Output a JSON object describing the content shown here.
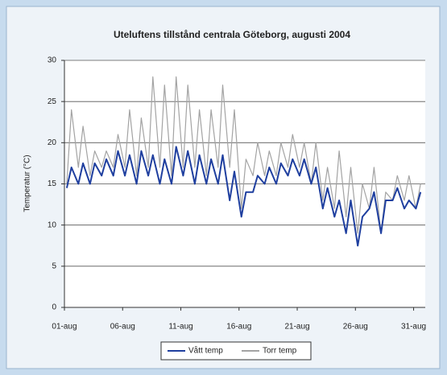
{
  "chart_data": {
    "type": "line",
    "title": "Uteluftens tillstånd centrala Göteborg, augusti 2004",
    "y_label": "Temperatur (°C)",
    "x": [
      1.2,
      1.6,
      2.2,
      2.6,
      3.2,
      3.6,
      4.2,
      4.6,
      5.2,
      5.6,
      6.2,
      6.6,
      7.2,
      7.6,
      8.2,
      8.6,
      9.2,
      9.6,
      10.2,
      10.6,
      11.2,
      11.6,
      12.2,
      12.6,
      13.2,
      13.6,
      14.2,
      14.6,
      15.2,
      15.6,
      16.2,
      16.6,
      17.2,
      17.6,
      18.2,
      18.6,
      19.2,
      19.6,
      20.2,
      20.6,
      21.2,
      21.6,
      22.2,
      22.6,
      23.2,
      23.6,
      24.2,
      24.6,
      25.2,
      25.6,
      26.2,
      26.6,
      27.2,
      27.6,
      28.2,
      28.6,
      29.2,
      29.6,
      30.2,
      30.6,
      31.2,
      31.6
    ],
    "series": [
      {
        "name": "Vått temp",
        "color": "#1f3f9f",
        "values": [
          14.5,
          17,
          15,
          17.5,
          15,
          17.5,
          16,
          18,
          16,
          19,
          16,
          18.5,
          15,
          19,
          16,
          18.5,
          15,
          18,
          15,
          19.5,
          16,
          19,
          15,
          18.5,
          15,
          18,
          15,
          18.5,
          13,
          16.5,
          11,
          14,
          14,
          16,
          15,
          17,
          15,
          17.5,
          16,
          18,
          16,
          18,
          15,
          17,
          12,
          14.5,
          11,
          13,
          9,
          13,
          7.5,
          11,
          12,
          14,
          9,
          13,
          13,
          14.5,
          12,
          13,
          12,
          14
        ]
      },
      {
        "name": "Torr temp",
        "color": "#a3a3a3",
        "values": [
          15,
          24,
          17,
          22,
          16,
          19,
          17,
          19,
          17,
          21,
          17,
          24,
          16,
          23,
          17,
          28,
          17,
          27,
          16,
          28,
          17,
          27,
          17,
          24,
          16,
          24,
          17,
          27,
          17,
          24,
          12,
          18,
          16,
          20,
          16,
          19,
          16,
          20,
          17,
          21,
          17,
          20,
          15,
          20,
          13,
          17,
          12,
          19,
          11,
          17,
          9,
          15,
          12,
          17,
          9,
          14,
          13,
          16,
          13,
          16,
          12,
          15
        ]
      }
    ],
    "xlim": [
      1,
      32
    ],
    "xticks": [
      {
        "value": 1,
        "label": "01-aug"
      },
      {
        "value": 6,
        "label": "06-aug"
      },
      {
        "value": 11,
        "label": "11-aug"
      },
      {
        "value": 16,
        "label": "16-aug"
      },
      {
        "value": 21,
        "label": "21-aug"
      },
      {
        "value": 26,
        "label": "26-aug"
      },
      {
        "value": 31,
        "label": "31-aug"
      }
    ],
    "ylim": [
      0,
      30
    ],
    "yticks": [
      0,
      5,
      10,
      15,
      20,
      25,
      30
    ],
    "grid": true,
    "legend": "bottom"
  }
}
